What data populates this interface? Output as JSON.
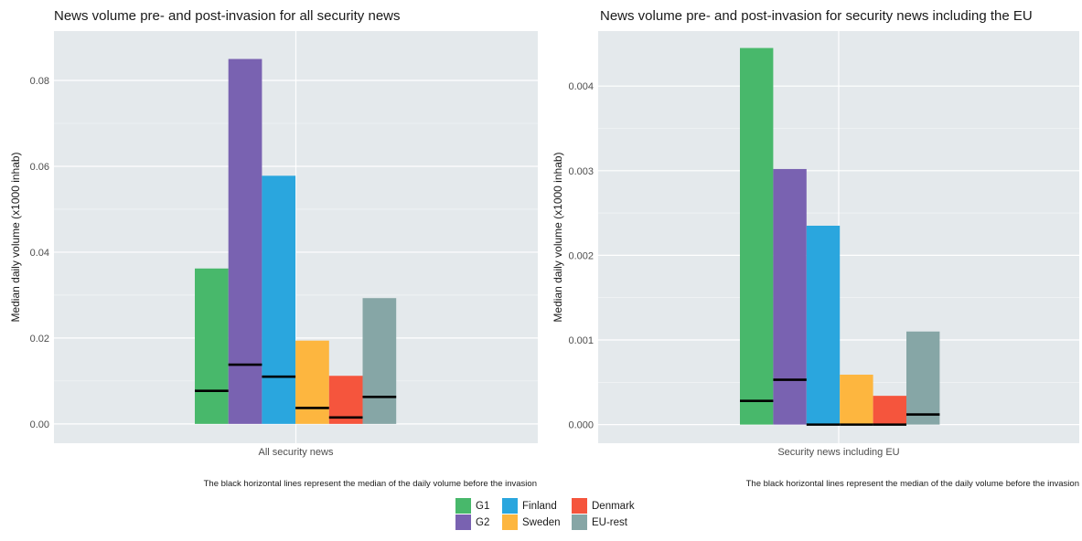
{
  "chart_data": [
    {
      "type": "bar",
      "title": "News volume pre- and post-invasion for all security news",
      "ylabel": "Median daily volume (x1000 inhab)",
      "categories": [
        "All security news"
      ],
      "yticks": [
        "0.00",
        "0.02",
        "0.04",
        "0.06",
        "0.08"
      ],
      "ytick_values": [
        0,
        0.02,
        0.04,
        0.06,
        0.08
      ],
      "ylim": [
        -0.0045,
        0.0915
      ],
      "grid": true,
      "series": [
        {
          "name": "G1",
          "values": [
            0.0362
          ],
          "pre_invasion_median": [
            0.0077
          ]
        },
        {
          "name": "G2",
          "values": [
            0.085
          ],
          "pre_invasion_median": [
            0.0138
          ]
        },
        {
          "name": "Finland",
          "values": [
            0.0578
          ],
          "pre_invasion_median": [
            0.011
          ]
        },
        {
          "name": "Sweden",
          "values": [
            0.0194
          ],
          "pre_invasion_median": [
            0.0037
          ]
        },
        {
          "name": "Denmark",
          "values": [
            0.0112
          ],
          "pre_invasion_median": [
            0.0015
          ]
        },
        {
          "name": "EU-rest",
          "values": [
            0.0293
          ],
          "pre_invasion_median": [
            0.0063
          ]
        }
      ],
      "note": "The black horizontal lines represent the median of the daily volume before the invasion"
    },
    {
      "type": "bar",
      "title": "News volume pre- and post-invasion for security news including the EU",
      "ylabel": "Median daily volume (x1000 inhab)",
      "categories": [
        "Security news including EU"
      ],
      "yticks": [
        "0.000",
        "0.001",
        "0.002",
        "0.003",
        "0.004"
      ],
      "ytick_values": [
        0,
        0.001,
        0.002,
        0.003,
        0.004
      ],
      "ylim": [
        -0.00022,
        0.00465
      ],
      "grid": true,
      "series": [
        {
          "name": "G1",
          "values": [
            0.00445
          ],
          "pre_invasion_median": [
            0.00028
          ]
        },
        {
          "name": "G2",
          "values": [
            0.00302
          ],
          "pre_invasion_median": [
            0.00053
          ]
        },
        {
          "name": "Finland",
          "values": [
            0.00235
          ],
          "pre_invasion_median": [
            0.0
          ]
        },
        {
          "name": "Sweden",
          "values": [
            0.00059
          ],
          "pre_invasion_median": [
            0.0
          ]
        },
        {
          "name": "Denmark",
          "values": [
            0.00034
          ],
          "pre_invasion_median": [
            0.0
          ]
        },
        {
          "name": "EU-rest",
          "values": [
            0.0011
          ],
          "pre_invasion_median": [
            0.00012
          ]
        }
      ],
      "note": "The black horizontal lines represent the median of the daily volume before the invasion"
    }
  ],
  "legend": {
    "placement": "bottom",
    "items": [
      {
        "name": "G1",
        "color": "#48b86b"
      },
      {
        "name": "G2",
        "color": "#7962b1"
      },
      {
        "name": "Finland",
        "color": "#2aa6de"
      },
      {
        "name": "Sweden",
        "color": "#fdb63f"
      },
      {
        "name": "Denmark",
        "color": "#f5553d"
      },
      {
        "name": "EU-rest",
        "color": "#86a6a6"
      }
    ]
  },
  "colors": {
    "panel_background": "#e4e9ec",
    "grid_line": "#ffffff",
    "median_line": "#000000"
  }
}
